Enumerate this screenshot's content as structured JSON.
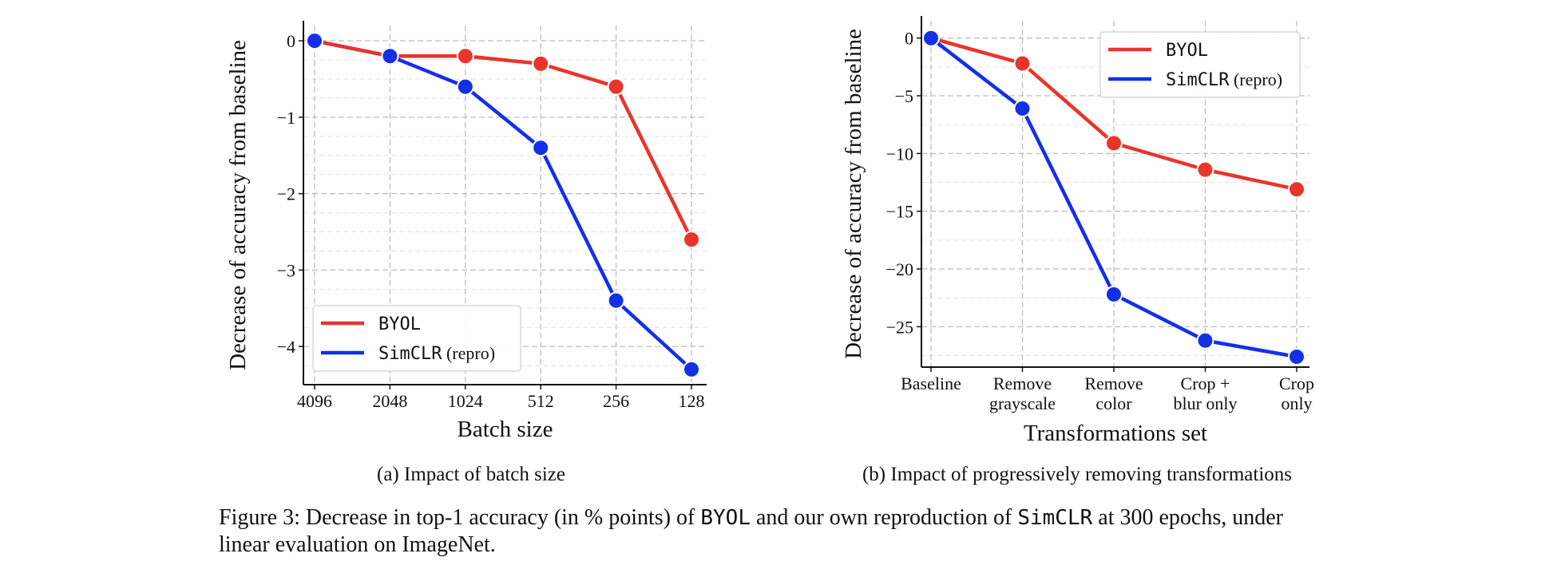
{
  "chart_data": [
    {
      "type": "line",
      "xlabel": "Batch size",
      "ylabel": "Decrease of accuracy from baseline",
      "categories": [
        "4096",
        "2048",
        "1024",
        "512",
        "256",
        "128"
      ],
      "ylim": [
        -4.5,
        0.2
      ],
      "yticks": [
        0,
        -1,
        -2,
        -3,
        -4
      ],
      "ytick_labels": [
        "0",
        "−1",
        "−2",
        "−3",
        "−4"
      ],
      "grid": true,
      "legend": "bottom-left",
      "series": [
        {
          "name": "BYOL",
          "values": [
            0,
            -0.2,
            -0.2,
            -0.3,
            -0.6,
            -2.6
          ],
          "color": "#e8352b"
        },
        {
          "name": "SimCLR (repro)",
          "values": [
            0,
            -0.2,
            -0.6,
            -1.4,
            -3.4,
            -4.3
          ],
          "color": "#1430e6"
        }
      ],
      "caption": "(a) Impact of batch size"
    },
    {
      "type": "line",
      "xlabel": "Transformations set",
      "ylabel": "Decrease of accuracy from baseline",
      "categories": [
        "Baseline",
        "Remove grayscale",
        "Remove color",
        "Crop + blur only",
        "Crop only"
      ],
      "category_lines": [
        [
          "Baseline"
        ],
        [
          "Remove",
          "grayscale"
        ],
        [
          "Remove",
          "color"
        ],
        [
          "Crop +",
          "blur only"
        ],
        [
          "Crop",
          "only"
        ]
      ],
      "ylim": [
        -28.5,
        1.5
      ],
      "yticks": [
        0,
        -5,
        -10,
        -15,
        -20,
        -25
      ],
      "ytick_labels": [
        "0",
        "−5",
        "−10",
        "−15",
        "−20",
        "−25"
      ],
      "grid": true,
      "legend": "top-right",
      "series": [
        {
          "name": "BYOL",
          "values": [
            0,
            -2.2,
            -9.1,
            -11.4,
            -13.1
          ],
          "color": "#e8352b"
        },
        {
          "name": "SimCLR (repro)",
          "values": [
            0,
            -6.1,
            -22.2,
            -26.2,
            -27.6
          ],
          "color": "#1430e6"
        }
      ],
      "caption": "(b) Impact of progressively removing transformations"
    }
  ],
  "figure_caption": {
    "label": "Figure 3:",
    "text_1": "Decrease in top-1 accuracy (in % points) of",
    "byol": "BYOL",
    "text_2": "and our own reproduction of",
    "simclr": "SimCLR",
    "text_3": "at 300 epochs, under linear evaluation on ImageNet."
  }
}
